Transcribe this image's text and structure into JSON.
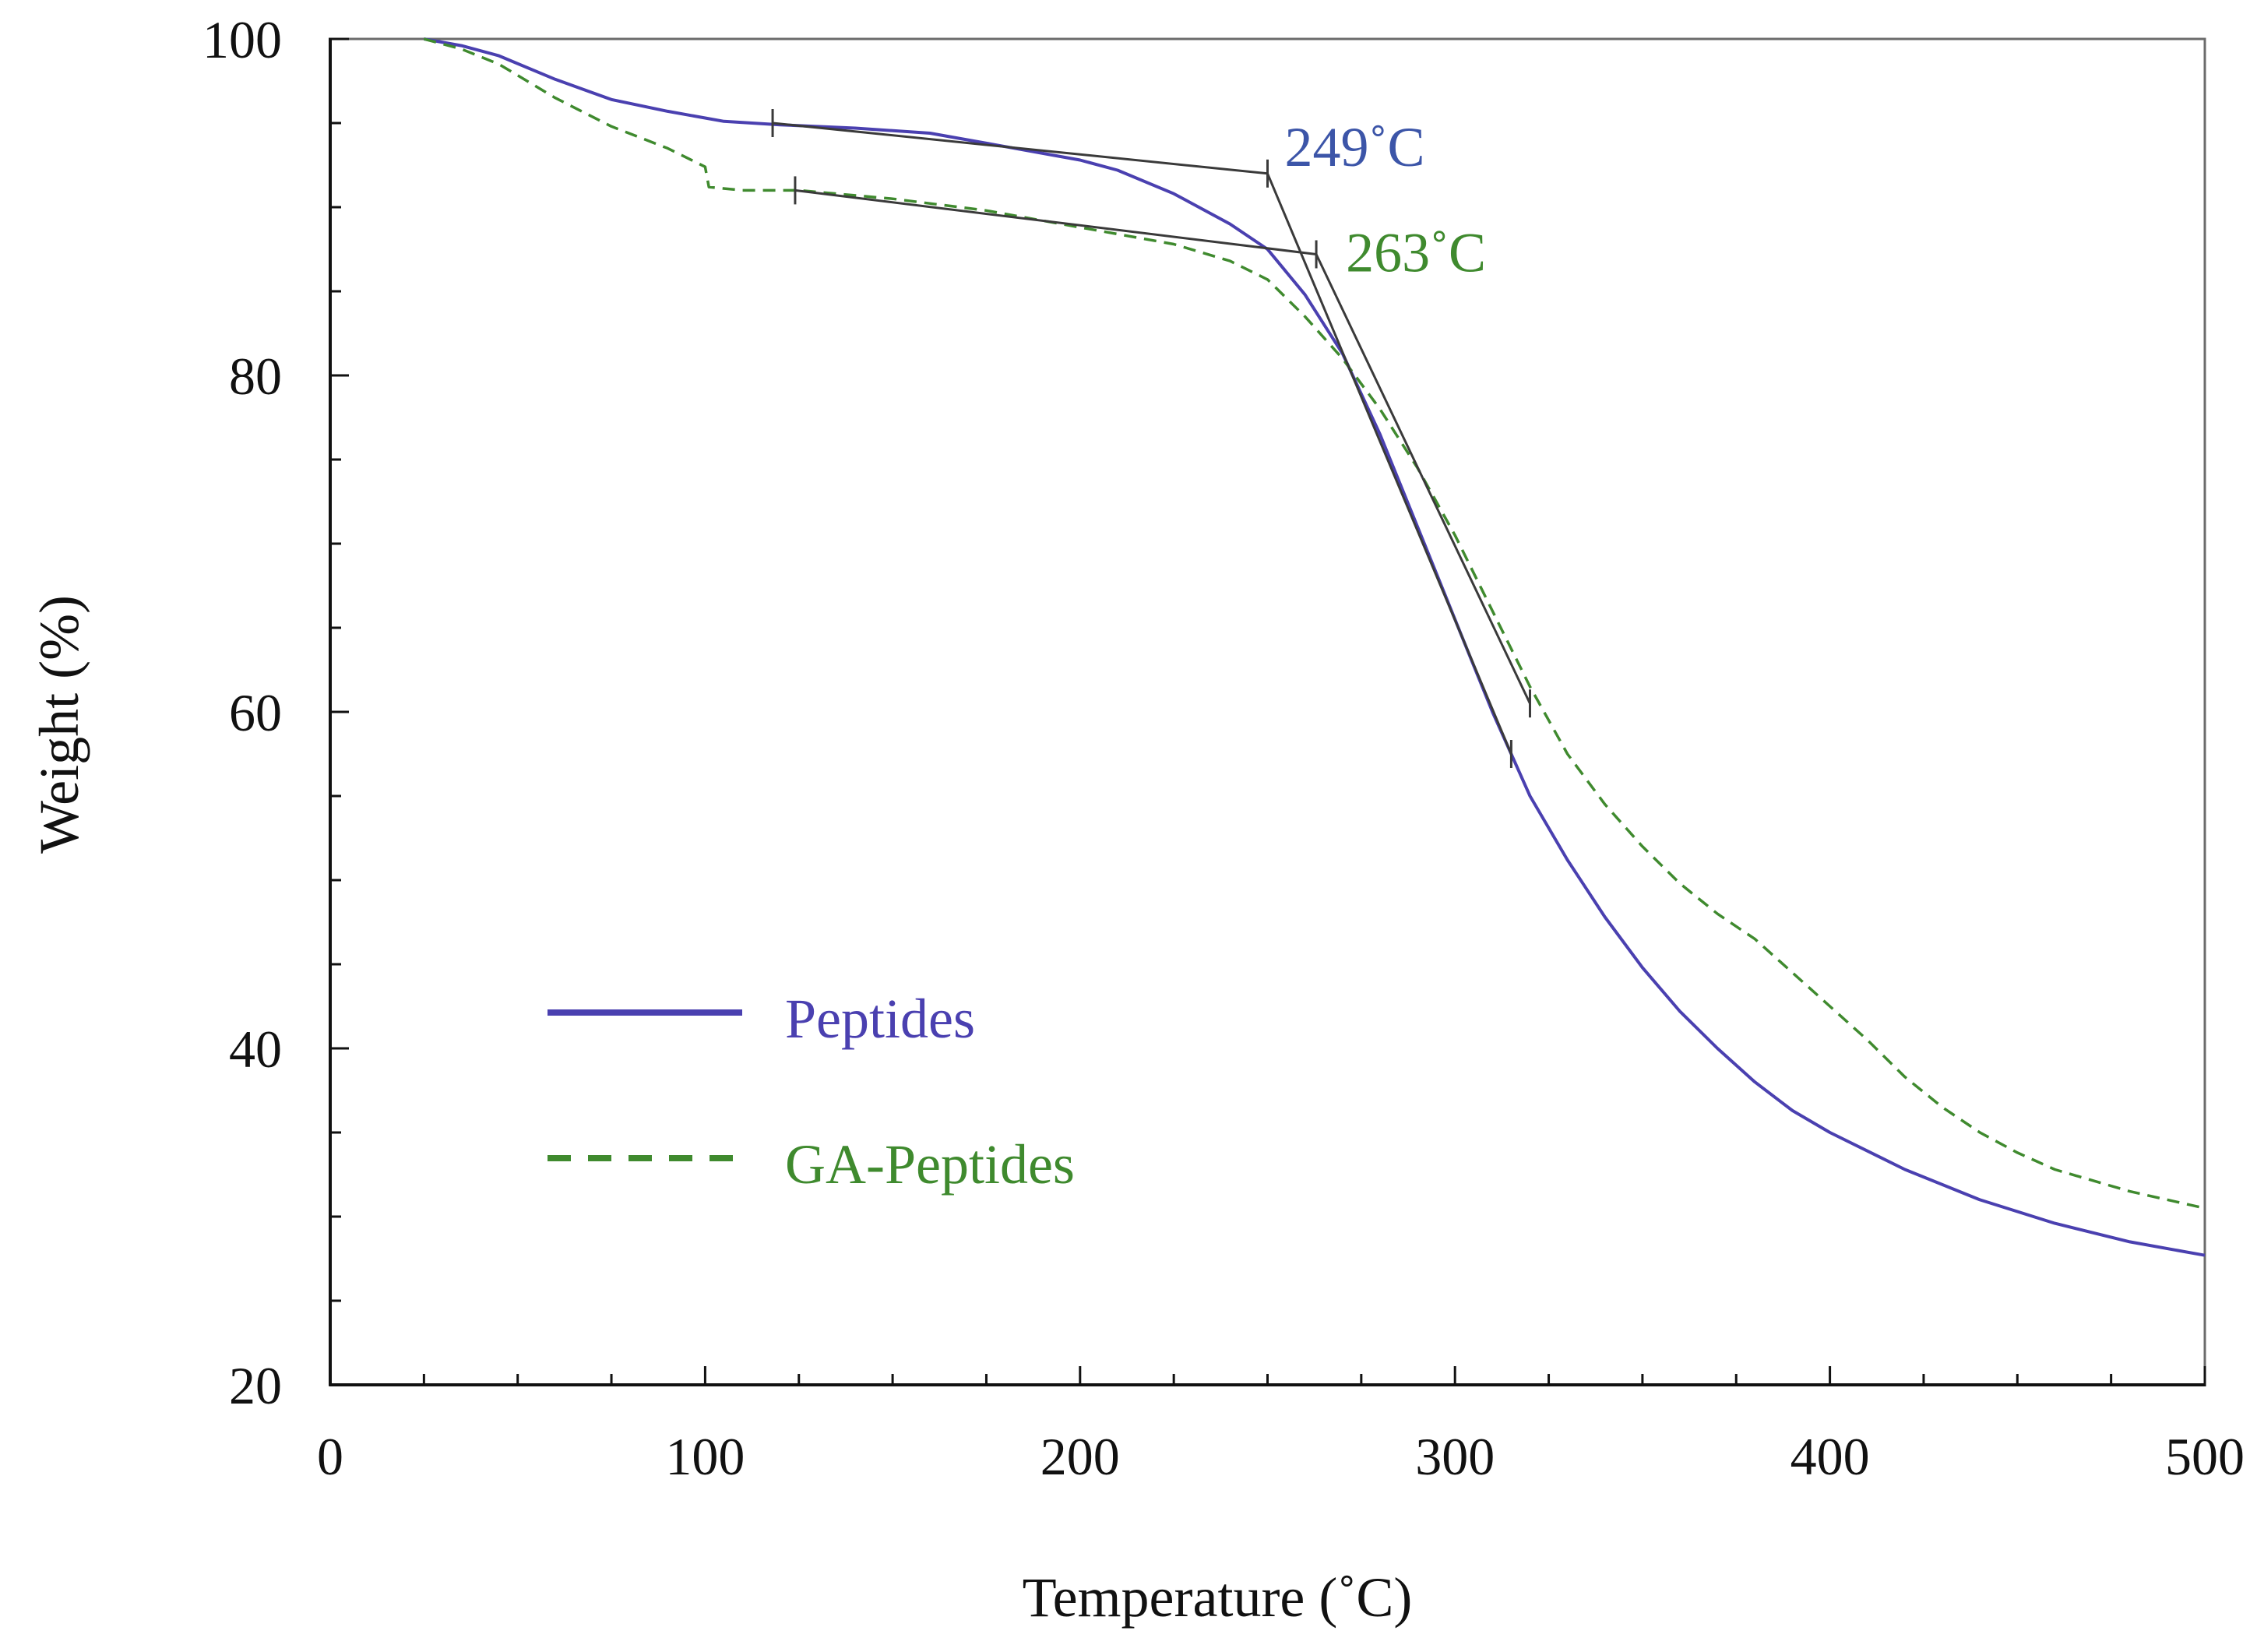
{
  "chart_data": {
    "type": "line",
    "title": "",
    "xlabel": "Temperature (˚C)",
    "ylabel": "Weight (%)",
    "xlim": [
      0,
      500
    ],
    "ylim": [
      20,
      100
    ],
    "x_ticks": [
      0,
      100,
      200,
      300,
      400,
      500
    ],
    "y_ticks": [
      20,
      40,
      60,
      80,
      100
    ],
    "x_minor_step": 25,
    "y_minor_step": 5,
    "grid": false,
    "legend_position": "lower-left",
    "series": [
      {
        "name": "Peptides",
        "color": "#4a40b0",
        "style": "solid",
        "points": [
          [
            25,
            100
          ],
          [
            35,
            99.6
          ],
          [
            45,
            99
          ],
          [
            60,
            97.6
          ],
          [
            75,
            96.4
          ],
          [
            90,
            95.7
          ],
          [
            100,
            95.3
          ],
          [
            105,
            95.1
          ],
          [
            120,
            94.9
          ],
          [
            140,
            94.7
          ],
          [
            160,
            94.4
          ],
          [
            180,
            93.6
          ],
          [
            200,
            92.8
          ],
          [
            210,
            92.2
          ],
          [
            225,
            90.8
          ],
          [
            240,
            89
          ],
          [
            250,
            87.5
          ],
          [
            260,
            84.8
          ],
          [
            270,
            81.3
          ],
          [
            280,
            76.5
          ],
          [
            290,
            71
          ],
          [
            300,
            65.5
          ],
          [
            310,
            60
          ],
          [
            320,
            55
          ],
          [
            330,
            51.2
          ],
          [
            340,
            47.8
          ],
          [
            350,
            44.8
          ],
          [
            360,
            42.2
          ],
          [
            370,
            40
          ],
          [
            380,
            38
          ],
          [
            390,
            36.3
          ],
          [
            400,
            35
          ],
          [
            420,
            32.8
          ],
          [
            440,
            31
          ],
          [
            460,
            29.6
          ],
          [
            480,
            28.5
          ],
          [
            500,
            27.7
          ]
        ]
      },
      {
        "name": "GA-Peptides",
        "color": "#3f8a2e",
        "style": "dashed",
        "points": [
          [
            25,
            100
          ],
          [
            35,
            99.4
          ],
          [
            45,
            98.5
          ],
          [
            60,
            96.5
          ],
          [
            75,
            94.8
          ],
          [
            90,
            93.5
          ],
          [
            100,
            92.4
          ],
          [
            101,
            91.2
          ],
          [
            110,
            91
          ],
          [
            125,
            91
          ],
          [
            150,
            90.5
          ],
          [
            175,
            89.8
          ],
          [
            200,
            88.8
          ],
          [
            225,
            87.8
          ],
          [
            240,
            86.8
          ],
          [
            250,
            85.7
          ],
          [
            260,
            83.5
          ],
          [
            270,
            81
          ],
          [
            280,
            78
          ],
          [
            290,
            74.5
          ],
          [
            300,
            70.5
          ],
          [
            310,
            66
          ],
          [
            320,
            61.5
          ],
          [
            330,
            57.5
          ],
          [
            340,
            54.5
          ],
          [
            350,
            52
          ],
          [
            360,
            49.8
          ],
          [
            370,
            48
          ],
          [
            380,
            46.5
          ],
          [
            390,
            44.5
          ],
          [
            400,
            42.5
          ],
          [
            410,
            40.5
          ],
          [
            420,
            38.3
          ],
          [
            430,
            36.5
          ],
          [
            440,
            35
          ],
          [
            450,
            33.8
          ],
          [
            460,
            32.8
          ],
          [
            480,
            31.5
          ],
          [
            500,
            30.5
          ]
        ]
      }
    ],
    "onset_markers": [
      {
        "label": "249˚C",
        "color": "#3c55a8",
        "baseline": [
          [
            118,
            95
          ],
          [
            250,
            92
          ]
        ],
        "slope": [
          [
            250,
            92
          ],
          [
            315,
            57.5
          ]
        ]
      },
      {
        "label": "263˚C",
        "color": "#3f8a2e",
        "baseline": [
          [
            124,
            91
          ],
          [
            263,
            87.2
          ]
        ],
        "slope": [
          [
            263,
            87.2
          ],
          [
            320,
            60.5
          ]
        ]
      }
    ]
  }
}
